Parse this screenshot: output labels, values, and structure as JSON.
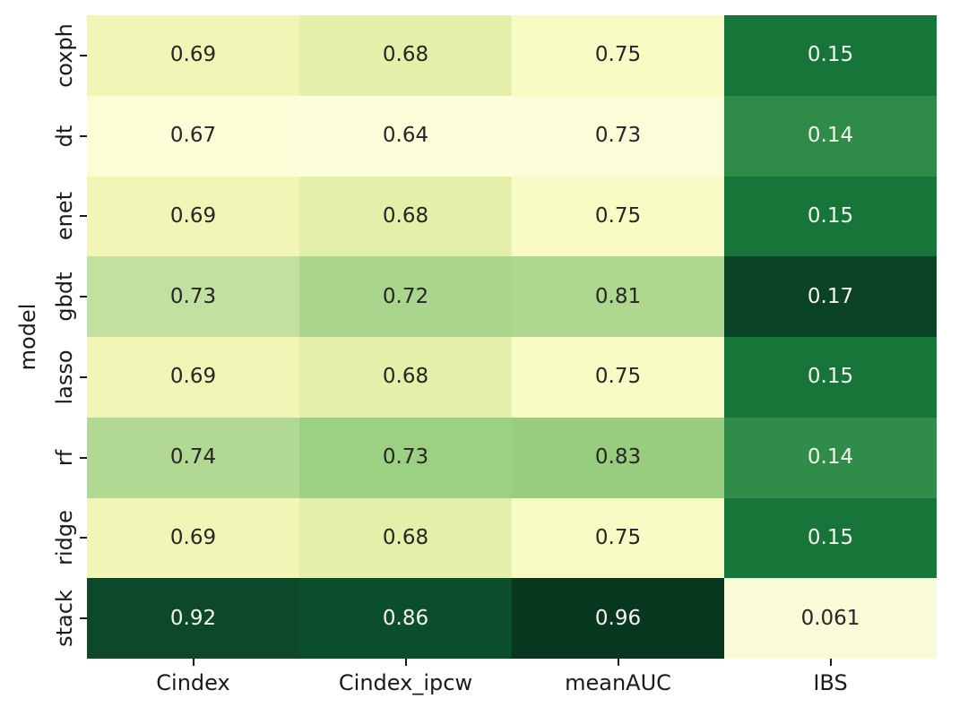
{
  "chart_data": {
    "type": "heatmap",
    "title": "",
    "xlabel": "",
    "ylabel": "model",
    "colormap": "YlGn",
    "legend_position": "none",
    "grid": false,
    "rows": [
      "coxph",
      "dt",
      "enet",
      "gbdt",
      "lasso",
      "rf",
      "ridge",
      "stack"
    ],
    "columns": [
      "Cindex",
      "Cindex_ipcw",
      "meanAUC",
      "IBS"
    ],
    "values": [
      [
        0.69,
        0.68,
        0.75,
        0.15
      ],
      [
        0.67,
        0.64,
        0.73,
        0.14
      ],
      [
        0.69,
        0.68,
        0.75,
        0.15
      ],
      [
        0.73,
        0.72,
        0.81,
        0.17
      ],
      [
        0.69,
        0.68,
        0.75,
        0.15
      ],
      [
        0.74,
        0.73,
        0.83,
        0.14
      ],
      [
        0.69,
        0.68,
        0.75,
        0.15
      ],
      [
        0.92,
        0.86,
        0.96,
        0.061
      ]
    ],
    "labels": [
      [
        "0.69",
        "0.68",
        "0.75",
        "0.15"
      ],
      [
        "0.67",
        "0.64",
        "0.73",
        "0.14"
      ],
      [
        "0.69",
        "0.68",
        "0.75",
        "0.15"
      ],
      [
        "0.73",
        "0.72",
        "0.81",
        "0.17"
      ],
      [
        "0.69",
        "0.68",
        "0.75",
        "0.15"
      ],
      [
        "0.74",
        "0.73",
        "0.83",
        "0.14"
      ],
      [
        "0.69",
        "0.68",
        "0.75",
        "0.15"
      ],
      [
        "0.92",
        "0.86",
        "0.96",
        "0.061"
      ]
    ],
    "cell_colors": [
      [
        "#f1f6b7",
        "#e4f0aa",
        "#f8fbc3",
        "#17753a"
      ],
      [
        "#fcfdd7",
        "#fdfeda",
        "#fcfcd9",
        "#2e8c48"
      ],
      [
        "#f1f6b7",
        "#e4f0aa",
        "#f8fbc3",
        "#17753a"
      ],
      [
        "#c2e1a1",
        "#a9d58c",
        "#aed88f",
        "#0a4326"
      ],
      [
        "#f1f6b7",
        "#e4f0aa",
        "#f8fbc3",
        "#17753a"
      ],
      [
        "#b1d993",
        "#9cd083",
        "#98cd7f",
        "#2f8d49"
      ],
      [
        "#f1f6b7",
        "#e4f0aa",
        "#f8fbc3",
        "#17753a"
      ],
      [
        "#0c4829",
        "#0b4e2b",
        "#07371e",
        "#fafad9"
      ]
    ],
    "annot_color_dark": "#262626",
    "annot_color_light": "#f5f5ef",
    "tick_color": "#1a1a1a"
  }
}
